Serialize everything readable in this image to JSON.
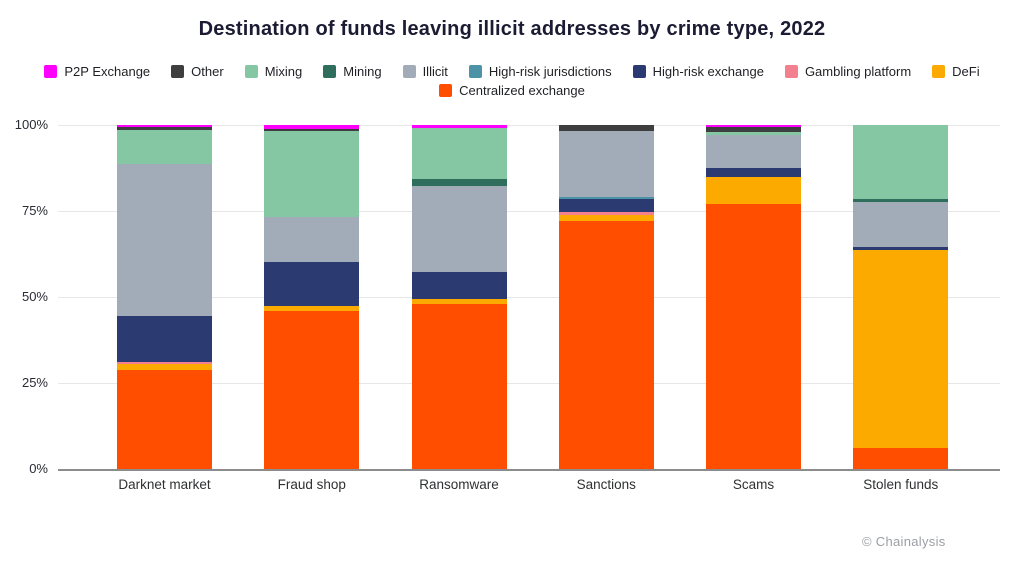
{
  "title": "Destination of funds leaving illicit addresses by crime type, 2022",
  "copyright": "© Chainalysis",
  "chart_data": {
    "type": "bar",
    "subtype": "stacked-percentage-column",
    "title": "Destination of funds leaving illicit addresses by crime type, 2022",
    "xlabel": "",
    "ylabel": "",
    "ylim": [
      0,
      100
    ],
    "y_ticks": [
      {
        "label": "100%",
        "value": 100
      },
      {
        "label": "75%",
        "value": 75
      },
      {
        "label": "50%",
        "value": 50
      },
      {
        "label": "25%",
        "value": 25
      },
      {
        "label": "0%",
        "value": 0
      }
    ],
    "grid": "horizontal",
    "legend_position": "top-center",
    "legend_rows": [
      9,
      1
    ],
    "categories": [
      "Darknet market",
      "Fraud shop",
      "Ransomware",
      "Sanctions",
      "Scams",
      "Stolen funds"
    ],
    "series": [
      {
        "name": "P2P Exchange",
        "color": "#FF00FF",
        "values": [
          0.7,
          1.2,
          0.8,
          0,
          0.5,
          0
        ]
      },
      {
        "name": "Other",
        "color": "#3E3E3E",
        "values": [
          0.7,
          0.6,
          0,
          1.8,
          1.5,
          0
        ]
      },
      {
        "name": "Mixing",
        "color": "#85C7A3",
        "values": [
          10,
          25,
          15,
          0,
          1.0,
          21.5
        ]
      },
      {
        "name": "Mining",
        "color": "#2F6D5D",
        "values": [
          0,
          0,
          1.8,
          0,
          0,
          0.8
        ]
      },
      {
        "name": "Illicit",
        "color": "#A2ABB8",
        "values": [
          44,
          13,
          25,
          19,
          9.5,
          13.2
        ]
      },
      {
        "name": "High-risk jurisdictions",
        "color": "#4C93A8",
        "values": [
          0,
          0,
          0,
          0.6,
          0,
          0
        ]
      },
      {
        "name": "High-risk exchange",
        "color": "#2B3A70",
        "values": [
          13.6,
          12.8,
          8,
          4,
          2.5,
          0.8
        ]
      },
      {
        "name": "Gambling platform",
        "color": "#F2808F",
        "values": [
          0.4,
          0,
          0,
          0.8,
          0,
          0
        ]
      },
      {
        "name": "DeFi",
        "color": "#FCAA00",
        "values": [
          1.8,
          1.4,
          1.4,
          1.8,
          8,
          57.7
        ]
      },
      {
        "name": "Centralized exchange",
        "color": "#FF4E00",
        "values": [
          28.8,
          46,
          48,
          72,
          77,
          6
        ]
      }
    ]
  }
}
